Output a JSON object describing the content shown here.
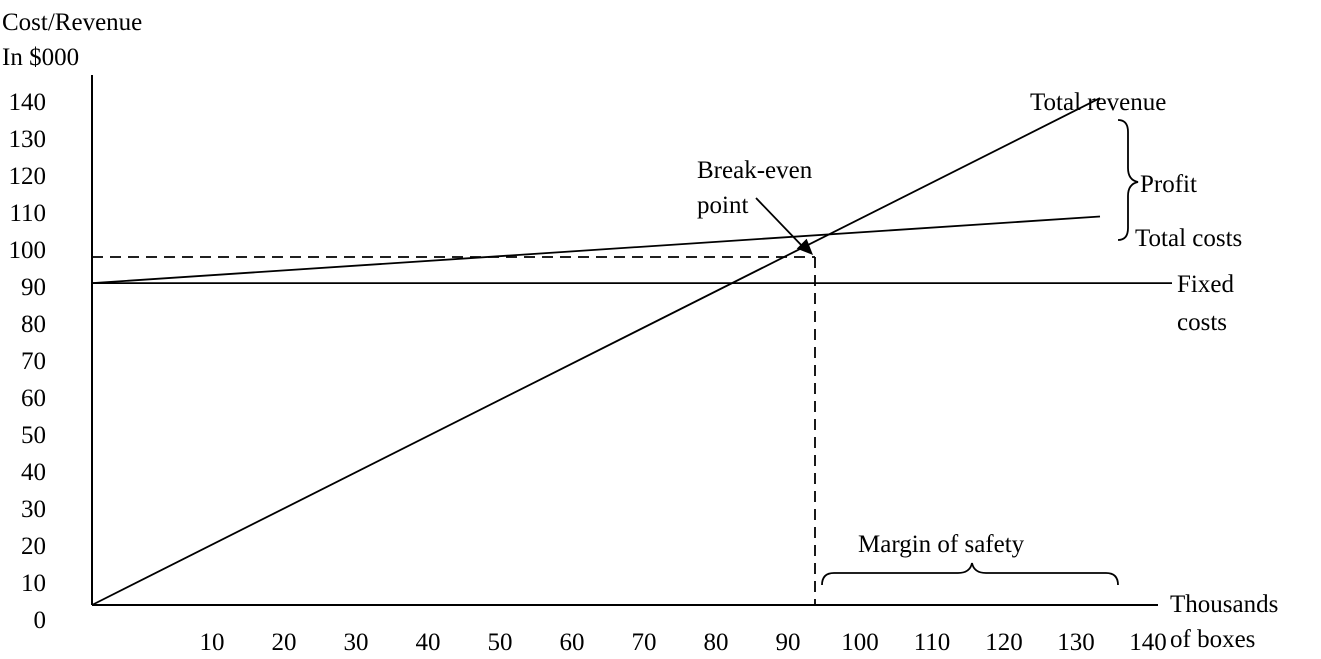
{
  "chart_data": {
    "type": "line",
    "ylabel": [
      "Cost/Revenue",
      "In $000"
    ],
    "xlabel": [
      "Thousands",
      "of boxes"
    ],
    "xlim": [
      0,
      140
    ],
    "ylim": [
      0,
      140
    ],
    "x_ticks": [
      10,
      20,
      30,
      40,
      50,
      60,
      70,
      80,
      90,
      100,
      110,
      120,
      130,
      140
    ],
    "y_ticks": [
      0,
      10,
      20,
      30,
      40,
      50,
      60,
      70,
      80,
      90,
      100,
      110,
      120,
      130,
      140
    ],
    "series": [
      {
        "name": "Total revenue",
        "points": [
          [
            0,
            0
          ],
          [
            140,
            137
          ]
        ]
      },
      {
        "name": "Total costs",
        "points": [
          [
            0,
            87
          ],
          [
            140,
            105
          ]
        ]
      },
      {
        "name": "Fixed costs",
        "points": [
          [
            0,
            87
          ],
          [
            150,
            87
          ]
        ]
      }
    ],
    "break_even": {
      "x": 100,
      "y": 100
    },
    "annotations": {
      "break_even_label": [
        "Break-even",
        "point"
      ],
      "profit": "Profit",
      "total_revenue": "Total revenue",
      "total_costs": "Total costs",
      "fixed_costs": [
        "Fixed",
        "costs"
      ],
      "margin_of_safety": "Margin of safety"
    },
    "grid": false
  }
}
